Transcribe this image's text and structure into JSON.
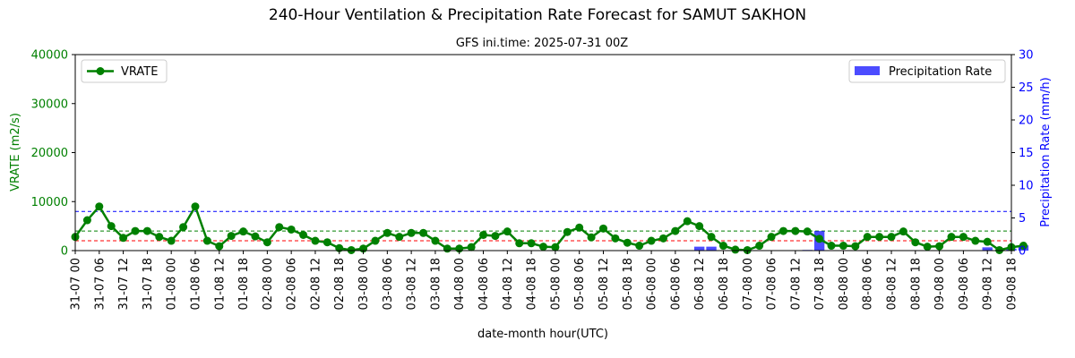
{
  "chart_data": {
    "type": "line",
    "title": "240-Hour Ventilation & Precipitation Rate Forecast for SAMUT SAKHON",
    "subtitle": "GFS ini.time: 2025-07-31 00Z",
    "xlabel": "date-month hour(UTC)",
    "ylabel_left": "VRATE (m2/s)",
    "ylabel_right": "Precipitation Rate (mm/h)",
    "ylim_left": [
      0,
      40000
    ],
    "ylim_right": [
      0,
      30
    ],
    "yticks_left": [
      "0",
      "10000",
      "20000",
      "30000",
      "40000"
    ],
    "yticks_right": [
      "0",
      "5",
      "10",
      "15",
      "20",
      "25",
      "30"
    ],
    "x_tick_labels": [
      "31-07 00",
      "31-07 06",
      "31-07 12",
      "31-07 18",
      "01-08 00",
      "01-08 06",
      "01-08 12",
      "01-08 18",
      "02-08 00",
      "02-08 06",
      "02-08 12",
      "02-08 18",
      "03-08 00",
      "03-08 06",
      "03-08 12",
      "03-08 18",
      "04-08 00",
      "04-08 06",
      "04-08 12",
      "04-08 18",
      "05-08 00",
      "05-08 06",
      "05-08 12",
      "05-08 18",
      "06-08 00",
      "06-08 06",
      "06-08 12",
      "06-08 18",
      "07-08 00",
      "07-08 06",
      "07-08 12",
      "07-08 18",
      "08-08 00",
      "08-08 06",
      "08-08 12",
      "08-08 18",
      "09-08 00",
      "09-08 06",
      "09-08 12",
      "09-08 18"
    ],
    "x_step_hours": 3,
    "series": [
      {
        "name": "VRATE",
        "type": "line",
        "axis": "left",
        "color": "#008000",
        "values": [
          2800,
          6200,
          9000,
          5000,
          2600,
          4000,
          4000,
          2800,
          2000,
          4800,
          9000,
          2000,
          900,
          3000,
          3900,
          2900,
          1700,
          4800,
          4300,
          3200,
          2000,
          1700,
          500,
          100,
          400,
          2000,
          3600,
          2800,
          3600,
          3600,
          2000,
          400,
          400,
          700,
          3200,
          3000,
          3900,
          1500,
          1500,
          800,
          700,
          3800,
          4700,
          2700,
          4500,
          2500,
          1600,
          1000,
          2000,
          2500,
          4000,
          6000,
          5000,
          2800,
          1000,
          200,
          100,
          1000,
          2800,
          4000,
          4000,
          3900,
          2400,
          1000,
          1000,
          900,
          2800,
          2800,
          2800,
          3900,
          1700,
          800,
          900,
          2800,
          2800,
          2000,
          1800,
          100,
          700,
          1000
        ]
      },
      {
        "name": "Precipitation Rate",
        "type": "bar",
        "axis": "right",
        "color": "#0000ff",
        "values": [
          0,
          0,
          0,
          0,
          0,
          0,
          0,
          0,
          0,
          0,
          0,
          0,
          0,
          0,
          0,
          0,
          0,
          0,
          0,
          0,
          0,
          0,
          0,
          0,
          0,
          0,
          0,
          0,
          0,
          0,
          0,
          0,
          0,
          0,
          0,
          0,
          0,
          0,
          0,
          0,
          0,
          0,
          0,
          0,
          0,
          0,
          0,
          0,
          0,
          0,
          0,
          0,
          0.6,
          0.6,
          0,
          0,
          0,
          0,
          0,
          0,
          0,
          0.1,
          3.0,
          0,
          0,
          0,
          0,
          0,
          0,
          0,
          0,
          0,
          0,
          0,
          0,
          0,
          0.5,
          0,
          0.3,
          0.8
        ]
      }
    ],
    "reference_lines": [
      {
        "value": 2000,
        "axis": "left",
        "color": "#ff0000"
      },
      {
        "value": 4000,
        "axis": "left",
        "color": "#008000"
      },
      {
        "value": 8000,
        "axis": "left",
        "color": "#0000ff"
      }
    ],
    "legend_left": "top-left",
    "legend_right": "top-right",
    "grid": false
  }
}
